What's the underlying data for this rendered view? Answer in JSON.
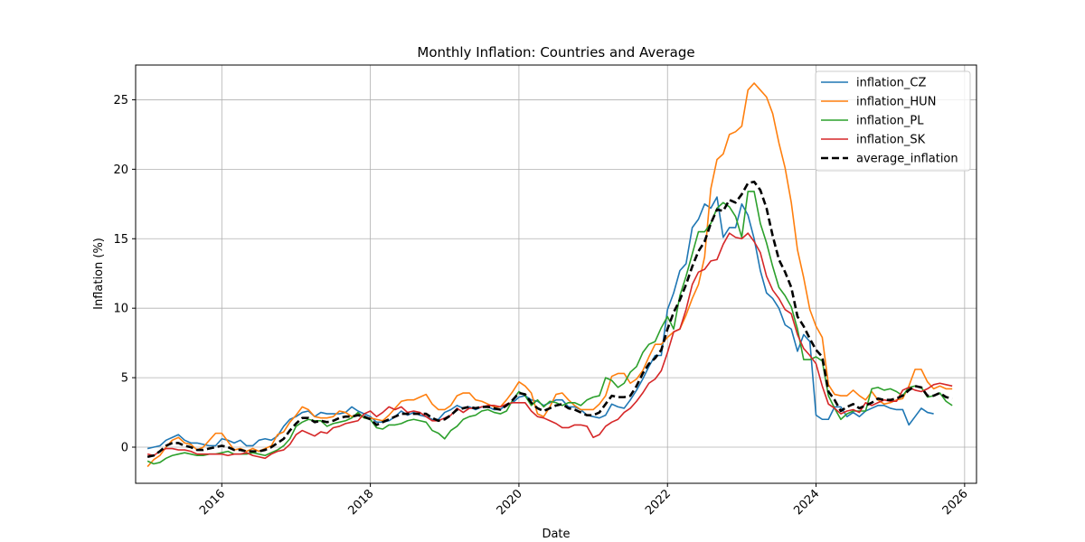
{
  "chart_data": {
    "type": "line",
    "title": "Monthly Inflation: Countries and Average",
    "xlabel": "Date",
    "ylabel": "Inflation (%)",
    "xlim": [
      2014.84,
      2026.16
    ],
    "ylim": [
      -2.6,
      27.5
    ],
    "x_ticks": [
      2016,
      2018,
      2020,
      2022,
      2024,
      2026
    ],
    "y_ticks": [
      0,
      5,
      10,
      15,
      20,
      25
    ],
    "grid": true,
    "legend_position": "top-right",
    "x_start": "2015-01",
    "series": [
      {
        "name": "inflation_CZ",
        "color": "#1f77b4",
        "dash": false,
        "values": [
          -0.1,
          0.0,
          0.1,
          0.5,
          0.7,
          0.9,
          0.5,
          0.3,
          0.3,
          0.2,
          0.1,
          0.1,
          0.6,
          0.5,
          0.3,
          0.5,
          0.1,
          0.1,
          0.5,
          0.6,
          0.5,
          0.8,
          1.5,
          2.0,
          2.2,
          2.5,
          2.6,
          2.2,
          2.5,
          2.4,
          2.4,
          2.4,
          2.5,
          2.9,
          2.6,
          2.4,
          2.2,
          1.8,
          1.8,
          1.9,
          2.2,
          2.6,
          2.3,
          2.5,
          2.3,
          2.2,
          2.0,
          2.0,
          2.5,
          2.7,
          3.0,
          2.8,
          2.9,
          2.7,
          2.9,
          2.9,
          2.7,
          2.7,
          3.1,
          3.2,
          3.6,
          3.7,
          3.4,
          3.3,
          3.0,
          3.2,
          3.4,
          3.4,
          2.9,
          2.9,
          2.7,
          2.3,
          2.2,
          2.1,
          2.3,
          3.1,
          2.9,
          2.8,
          3.4,
          4.1,
          4.9,
          5.8,
          6.6,
          6.6,
          9.9,
          11.1,
          12.7,
          13.2,
          15.8,
          16.4,
          17.5,
          17.2,
          18.0,
          15.1,
          15.8,
          15.8,
          17.5,
          16.7,
          15.0,
          12.7,
          11.1,
          10.7,
          10.0,
          8.8,
          8.5,
          6.9,
          8.1,
          7.6,
          2.3,
          2.0,
          2.0,
          2.9,
          2.9,
          2.2,
          2.5,
          2.2,
          2.6,
          2.8,
          3.0,
          3.0,
          2.8,
          2.7,
          2.7,
          1.6,
          2.2,
          2.8,
          2.5,
          2.4
        ],
        "label_note": ""
      },
      {
        "name": "inflation_HUN",
        "color": "#ff7f0e",
        "dash": false,
        "values": [
          -1.4,
          -0.9,
          -0.6,
          0.0,
          0.5,
          0.7,
          0.3,
          0.2,
          -0.2,
          0.0,
          0.5,
          1.0,
          1.0,
          0.4,
          -0.2,
          -0.1,
          -0.3,
          -0.1,
          -0.3,
          -0.1,
          0.1,
          0.9,
          1.1,
          1.8,
          2.3,
          2.9,
          2.7,
          2.2,
          2.1,
          2.1,
          2.2,
          2.6,
          2.5,
          2.2,
          2.4,
          2.1,
          2.1,
          2.0,
          1.9,
          2.3,
          2.8,
          3.3,
          3.4,
          3.4,
          3.6,
          3.8,
          3.1,
          2.7,
          2.7,
          3.0,
          3.7,
          3.9,
          3.9,
          3.4,
          3.3,
          3.1,
          2.9,
          2.9,
          3.4,
          4.0,
          4.7,
          4.4,
          3.9,
          2.4,
          2.2,
          2.9,
          3.8,
          3.9,
          3.4,
          3.0,
          2.7,
          2.7,
          2.7,
          3.1,
          3.7,
          5.1,
          5.3,
          5.3,
          4.6,
          4.9,
          5.5,
          6.5,
          7.4,
          7.4,
          7.9,
          8.3,
          8.5,
          9.5,
          10.7,
          11.7,
          13.7,
          18.6,
          20.7,
          21.1,
          22.5,
          22.7,
          23.1,
          25.7,
          26.2,
          25.7,
          25.2,
          24.0,
          21.9,
          20.1,
          17.6,
          14.2,
          12.2,
          9.9,
          8.7,
          7.9,
          4.5,
          3.8,
          3.7,
          3.7,
          4.1,
          3.7,
          3.4,
          4.0,
          3.4,
          3.1,
          3.2,
          3.4,
          3.5,
          4.4,
          5.6,
          5.6,
          4.7,
          4.2,
          4.4,
          4.2,
          4.2
        ],
        "label_note": ""
      },
      {
        "name": "inflation_PL",
        "color": "#2ca02c",
        "dash": false,
        "values": [
          -1.0,
          -1.2,
          -1.1,
          -0.8,
          -0.6,
          -0.5,
          -0.4,
          -0.5,
          -0.6,
          -0.6,
          -0.5,
          -0.5,
          -0.4,
          -0.3,
          -0.5,
          -0.5,
          -0.5,
          -0.4,
          -0.5,
          -0.6,
          -0.4,
          -0.2,
          0.1,
          0.6,
          1.5,
          1.8,
          2.0,
          1.9,
          1.9,
          1.5,
          1.7,
          1.8,
          1.9,
          2.1,
          2.5,
          2.1,
          2.0,
          1.4,
          1.3,
          1.6,
          1.6,
          1.7,
          1.9,
          2.0,
          1.9,
          1.8,
          1.2,
          1.0,
          0.6,
          1.2,
          1.5,
          2.0,
          2.2,
          2.3,
          2.6,
          2.7,
          2.5,
          2.4,
          2.6,
          3.4,
          4.0,
          3.7,
          3.0,
          3.4,
          2.9,
          3.3,
          3.2,
          3.0,
          3.2,
          3.2,
          3.0,
          3.4,
          3.6,
          3.7,
          5.0,
          4.8,
          4.3,
          4.6,
          5.4,
          5.8,
          6.8,
          7.4,
          7.6,
          8.6,
          9.4,
          8.5,
          10.9,
          12.3,
          13.9,
          15.5,
          15.5,
          16.1,
          17.2,
          17.6,
          17.3,
          16.6,
          15.1,
          18.4,
          18.4,
          16.1,
          14.7,
          13.0,
          11.5,
          10.9,
          10.1,
          8.5,
          6.3,
          6.3,
          6.5,
          6.2,
          3.7,
          2.8,
          2.0,
          2.4,
          2.6,
          2.6,
          2.6,
          4.2,
          4.3,
          4.1,
          4.2,
          4.0,
          3.7,
          4.3,
          4.4,
          4.3,
          3.6,
          3.7,
          3.9,
          3.3,
          3.0
        ],
        "label_note": ""
      },
      {
        "name": "inflation_SK",
        "color": "#d62728",
        "dash": false,
        "values": [
          -0.5,
          -0.6,
          -0.3,
          -0.1,
          -0.1,
          -0.2,
          -0.2,
          -0.3,
          -0.5,
          -0.5,
          -0.5,
          -0.5,
          -0.5,
          -0.6,
          -0.5,
          -0.5,
          -0.4,
          -0.6,
          -0.7,
          -0.8,
          -0.5,
          -0.3,
          -0.2,
          0.2,
          0.9,
          1.2,
          1.0,
          0.8,
          1.1,
          1.0,
          1.4,
          1.5,
          1.7,
          1.8,
          1.9,
          2.4,
          2.6,
          2.2,
          2.5,
          2.9,
          2.7,
          2.9,
          2.5,
          2.6,
          2.5,
          2.2,
          1.9,
          1.9,
          2.1,
          2.3,
          2.8,
          2.5,
          2.8,
          2.8,
          2.9,
          3.0,
          3.0,
          2.9,
          3.1,
          3.2,
          3.2,
          3.2,
          2.6,
          2.2,
          2.1,
          1.9,
          1.7,
          1.4,
          1.4,
          1.6,
          1.6,
          1.5,
          0.7,
          0.9,
          1.5,
          1.8,
          2.0,
          2.5,
          2.8,
          3.3,
          3.9,
          4.6,
          4.9,
          5.5,
          6.8,
          8.3,
          8.5,
          9.9,
          11.7,
          12.6,
          12.8,
          13.4,
          13.5,
          14.6,
          15.4,
          15.1,
          15.0,
          15.4,
          14.8,
          14.0,
          12.3,
          11.3,
          10.7,
          9.9,
          9.6,
          8.1,
          7.1,
          6.6,
          6.0,
          4.4,
          3.1,
          2.8,
          2.4,
          2.6,
          2.7,
          2.5,
          3.2,
          3.0,
          3.2,
          3.4,
          3.3,
          3.3,
          4.1,
          4.3,
          4.1,
          4.0,
          4.2,
          4.5,
          4.6,
          4.5,
          4.4
        ],
        "label_note": ""
      },
      {
        "name": "average_inflation",
        "color": "#000000",
        "dash": true,
        "values": [
          -0.7,
          -0.6,
          -0.3,
          0.1,
          0.3,
          0.3,
          0.1,
          0.0,
          -0.2,
          -0.2,
          -0.1,
          0.0,
          0.1,
          0.0,
          -0.2,
          -0.2,
          -0.3,
          -0.3,
          -0.3,
          -0.2,
          0.0,
          0.3,
          0.6,
          1.2,
          1.7,
          2.1,
          2.1,
          1.8,
          1.9,
          1.8,
          1.9,
          2.1,
          2.2,
          2.2,
          2.3,
          2.2,
          2.0,
          1.6,
          1.8,
          2.0,
          2.2,
          2.4,
          2.4,
          2.4,
          2.4,
          2.4,
          2.1,
          1.9,
          2.0,
          2.3,
          2.7,
          2.8,
          2.9,
          2.8,
          2.9,
          2.9,
          2.8,
          2.7,
          3.0,
          3.4,
          3.9,
          3.8,
          3.2,
          2.8,
          2.6,
          2.8,
          3.0,
          3.1,
          2.8,
          2.7,
          2.5,
          2.3,
          2.3,
          2.5,
          3.1,
          3.7,
          3.6,
          3.6,
          3.7,
          4.4,
          5.3,
          6.0,
          6.4,
          7.0,
          8.5,
          9.7,
          10.6,
          11.7,
          13.0,
          14.1,
          14.8,
          16.1,
          17.1,
          17.0,
          17.8,
          17.6,
          18.2,
          19.0,
          19.1,
          18.5,
          17.2,
          15.2,
          13.5,
          12.6,
          11.5,
          9.4,
          8.7,
          7.8,
          7.0,
          6.5,
          4.0,
          3.4,
          2.6,
          2.9,
          3.1,
          2.8,
          3.0,
          3.2,
          3.5,
          3.4,
          3.4,
          3.5,
          3.7,
          4.1,
          4.4,
          4.3,
          3.7,
          3.7,
          3.9,
          3.6,
          3.5
        ],
        "label_note": ""
      }
    ]
  }
}
